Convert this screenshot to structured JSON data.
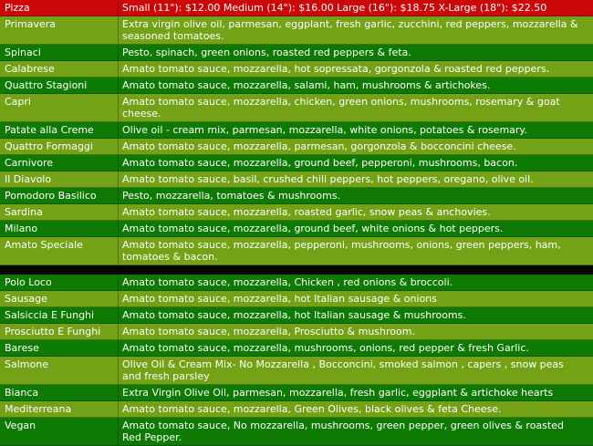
{
  "colors": {
    "header_bg": "#cc0707",
    "row_light_bg": "#73a216",
    "row_dark_bg": "#0e7a04",
    "divider_bg": "#040404",
    "text": "#ffffff"
  },
  "header": {
    "name_label": "Pizza",
    "prices_label": "Small (11\"): $12.00 Medium (14\"): $16.00 Large (16\"): $18.75  X-Large (18\"): $22.50"
  },
  "menu": {
    "rows": [
      {
        "name": "Primavera",
        "description": "Extra virgin olive oil, parmesan, eggplant, fresh garlic, zucchini, red peppers, mozzarella & seasoned tomatoes.",
        "shade": "light"
      },
      {
        "name": "Spinaci",
        "description": "Pesto, spinach, green onions, roasted red peppers & feta.",
        "shade": "dark"
      },
      {
        "name": "Calabrese",
        "description": "Amato tomato sauce, mozzarella, hot sopressata, gorgonzola & roasted red peppers.",
        "shade": "light"
      },
      {
        "name": "Quattro Stagioni",
        "description": "Amato tomato sauce, mozzarella, salami, ham, mushrooms & artichokes.",
        "shade": "dark"
      },
      {
        "name": "Capri",
        "description": "Amato tomato sauce, mozzarella, chicken, green onions, mushrooms, rosemary & goat cheese.",
        "shade": "light"
      },
      {
        "name": "Patate alla Creme",
        "description": "Olive oil - cream mix, parmesan, mozzarella, white onions, potatoes & rosemary.",
        "shade": "dark"
      },
      {
        "name": "Quattro Formaggi",
        "description": "Amato tomato sauce, mozzarella, parmesan, gorgonzola & bocconcini cheese.",
        "shade": "light"
      },
      {
        "name": "Carnivore",
        "description": "Amato tomato sauce, mozzarella, ground beef, pepperoni, mushrooms, bacon.",
        "shade": "dark"
      },
      {
        "name": "Il Diavolo",
        "description": "Amato tomato sauce, basil, crushed chili peppers, hot peppers, oregano, olive oil.",
        "shade": "light"
      },
      {
        "name": "Pomodoro Basilico",
        "description": "Pesto, mozzarella, tomatoes & mushrooms.",
        "shade": "dark"
      },
      {
        "name": "Sardina",
        "description": "Amato tomato sauce, mozzarella, roasted garlic, snow peas & anchovies.",
        "shade": "light"
      },
      {
        "name": "Milano",
        "description": "Amato tomato sauce, mozzarella, ground beef, white onions & hot peppers.",
        "shade": "dark"
      },
      {
        "name": "Amato Speciale",
        "description": "Amato tomato sauce, mozzarella, pepperoni, mushrooms, onions, green peppers, ham, tomatoes & bacon.",
        "shade": "light"
      },
      {
        "type": "divider"
      },
      {
        "name": "Polo Loco",
        "description": "Amato tomato sauce, mozzarella, Chicken , red onions & broccoli.",
        "shade": "dark"
      },
      {
        "name": "Sausage",
        "description": "Amato tomato sauce, mozzarella, hot Italian sausage & onions",
        "shade": "light"
      },
      {
        "name": "Salsiccia E Funghi",
        "description": "Amato tomato sauce, mozzarella, hot Italian sausage & mushrooms.",
        "shade": "dark"
      },
      {
        "name": "Prosciutto E Funghi",
        "description": "Amato tomato sauce, mozzarella, Prosciutto & mushroom.",
        "shade": "light"
      },
      {
        "name": "Barese",
        "description": "Amato tomato sauce, mozzarella, mushrooms, onions, red pepper & fresh Garlic.",
        "shade": "dark"
      },
      {
        "name": "Salmone",
        "description": "Olive Oil & Cream Mix- No Mozzarella , Bocconcini, smoked salmon , capers , snow peas and fresh parsley",
        "shade": "light"
      },
      {
        "name": "Bianca",
        "description": "Extra Virgin Olive Oil, parmesan, mozzarella,  fresh garlic, eggplant & artichoke hearts",
        "shade": "dark"
      },
      {
        "name": "Mediterreana",
        "description": "Amato tomato sauce, mozzarella, Green Olives, black olives & feta Cheese.",
        "shade": "light"
      },
      {
        "name": "Vegan",
        "description": "Amato tomato sauce, No mozzarella, mushrooms, green pepper, green olives & roasted Red Pepper.",
        "shade": "dark"
      }
    ]
  }
}
